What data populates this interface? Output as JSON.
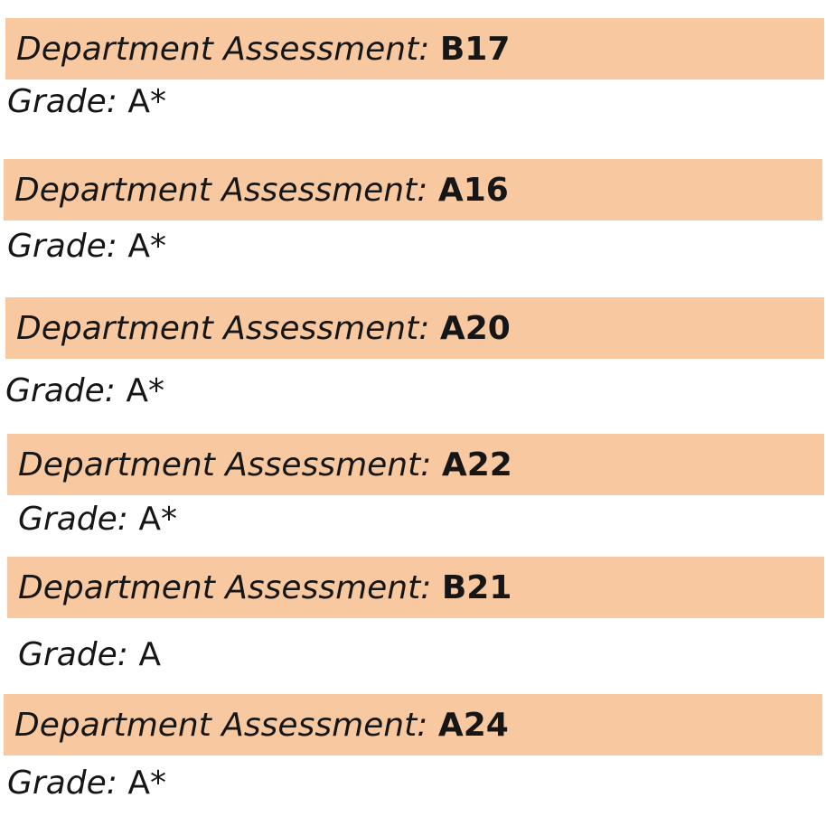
{
  "assessments": [
    {
      "label": "Department Assessment:",
      "code": "B17",
      "grade_label": "Grade:",
      "grade": "A*"
    },
    {
      "label": "Department Assessment:",
      "code": "A16",
      "grade_label": "Grade:",
      "grade": "A*"
    },
    {
      "label": "Department Assessment:",
      "code": "A20",
      "grade_label": "Grade:",
      "grade": "A*"
    },
    {
      "label": "Department Assessment:",
      "code": "A22",
      "grade_label": "Grade:",
      "grade": "A*"
    },
    {
      "label": "Department Assessment:",
      "code": "B21",
      "grade_label": "Grade:",
      "grade": "A"
    },
    {
      "label": "Department Assessment:",
      "code": "A24",
      "grade_label": "Grade:",
      "grade": "A*"
    }
  ],
  "colors": {
    "header_background": "#f8c9a0",
    "text": "#161616"
  }
}
